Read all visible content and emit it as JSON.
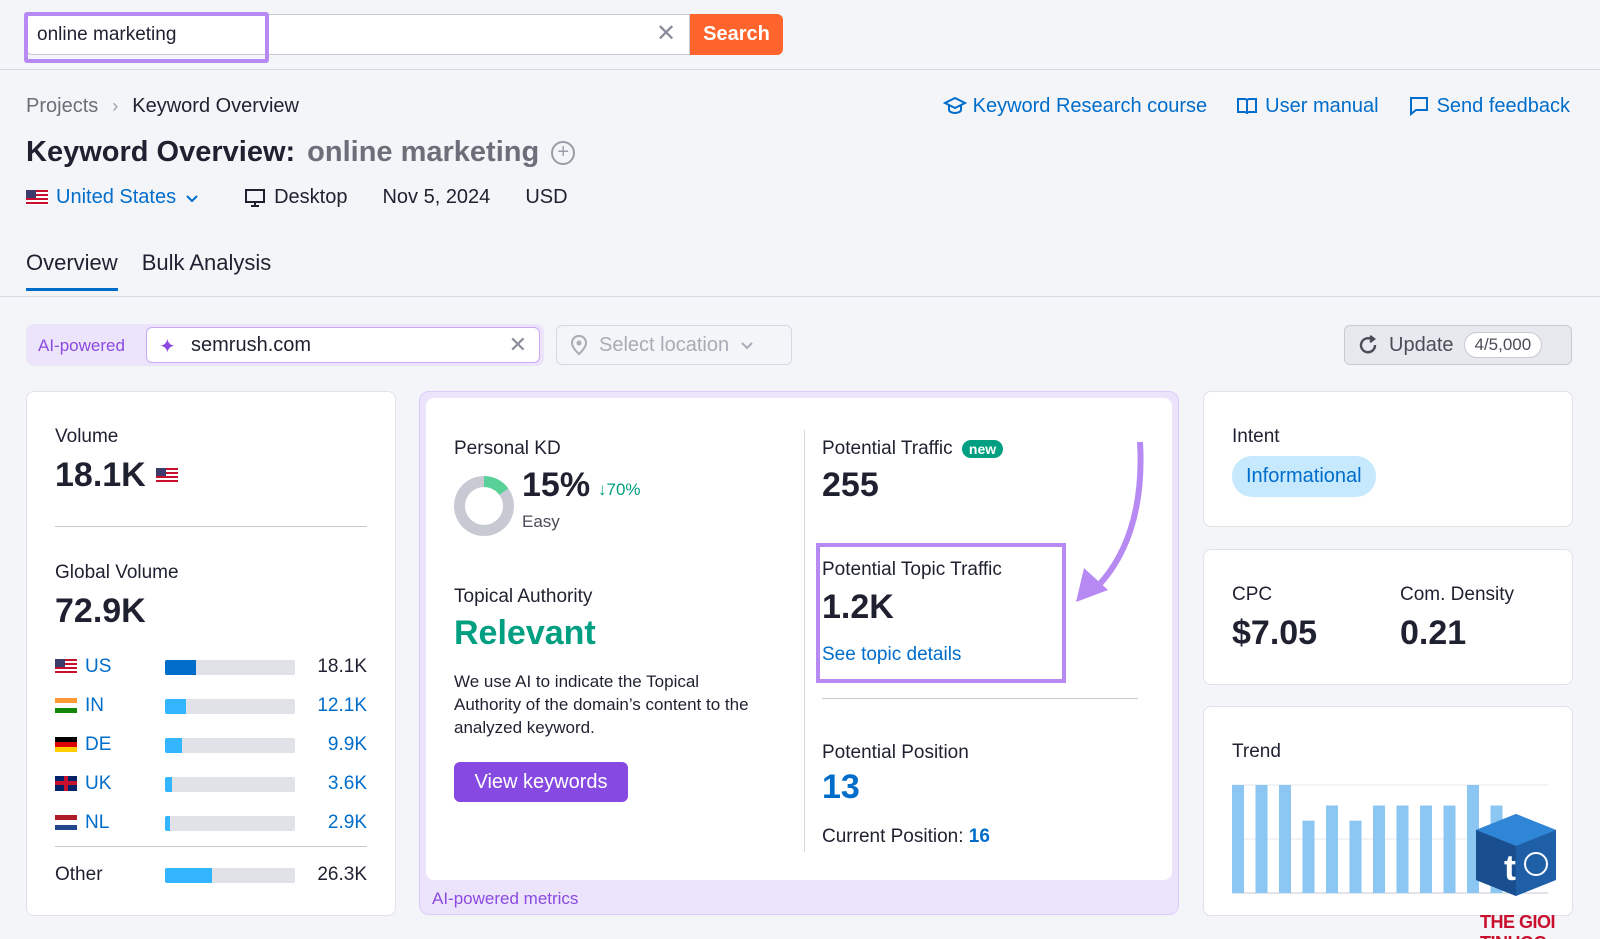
{
  "search": {
    "value": "online marketing",
    "button": "Search"
  },
  "breadcrumb": {
    "root": "Projects",
    "current": "Keyword Overview"
  },
  "links": {
    "course": "Keyword Research course",
    "manual": "User manual",
    "feedback": "Send feedback"
  },
  "title": {
    "label": "Keyword Overview:",
    "keyword": "online marketing"
  },
  "meta": {
    "country": "United States",
    "device": "Desktop",
    "date": "Nov 5, 2024",
    "currency": "USD"
  },
  "tabs": [
    "Overview",
    "Bulk Analysis"
  ],
  "ai": {
    "label": "AI-powered",
    "domain": "semrush.com",
    "location_placeholder": "Select location"
  },
  "update": {
    "label": "Update",
    "count": "4/5,000"
  },
  "volume": {
    "label": "Volume",
    "value": "18.1K",
    "global_label": "Global Volume",
    "global_value": "72.9K",
    "countries": [
      {
        "code": "US",
        "value": "18.1K",
        "share": 0.24
      },
      {
        "code": "IN",
        "value": "12.1K",
        "share": 0.16
      },
      {
        "code": "DE",
        "value": "9.9K",
        "share": 0.13
      },
      {
        "code": "UK",
        "value": "3.6K",
        "share": 0.05
      },
      {
        "code": "NL",
        "value": "2.9K",
        "share": 0.04
      }
    ],
    "other_label": "Other",
    "other_value": "26.3K",
    "other_share": 0.36
  },
  "kd": {
    "label": "Personal KD",
    "value": "15%",
    "change": "↓70%",
    "level": "Easy",
    "percent": 15
  },
  "authority": {
    "label": "Topical Authority",
    "value": "Relevant",
    "desc": "We use AI to indicate the Topical Authority of the domain’s content to the analyzed keyword.",
    "button": "View keywords"
  },
  "traffic": {
    "label": "Potential Traffic",
    "badge": "new",
    "value": "255"
  },
  "topic_traffic": {
    "label": "Potential Topic Traffic",
    "value": "1.2K",
    "link": "See topic details"
  },
  "position": {
    "label": "Potential Position",
    "value": "13",
    "current_label": "Current Position:",
    "current_value": "16"
  },
  "ai_footer": "AI-powered metrics",
  "intent": {
    "label": "Intent",
    "value": "Informational"
  },
  "cpc": {
    "label": "CPC",
    "value": "$7.05"
  },
  "density": {
    "label": "Com. Density",
    "value": "0.21"
  },
  "trend": {
    "label": "Trend",
    "values": [
      1.0,
      1.0,
      1.0,
      0.67,
      0.81,
      0.67,
      0.81,
      0.81,
      0.81,
      0.81,
      1.0,
      0.81
    ]
  },
  "watermark": {
    "text": "THE GIOI TINHOC"
  },
  "colors": {
    "accent": "#006dca",
    "orange": "#ff642d",
    "purple": "#8649e1",
    "green": "#009f81"
  }
}
